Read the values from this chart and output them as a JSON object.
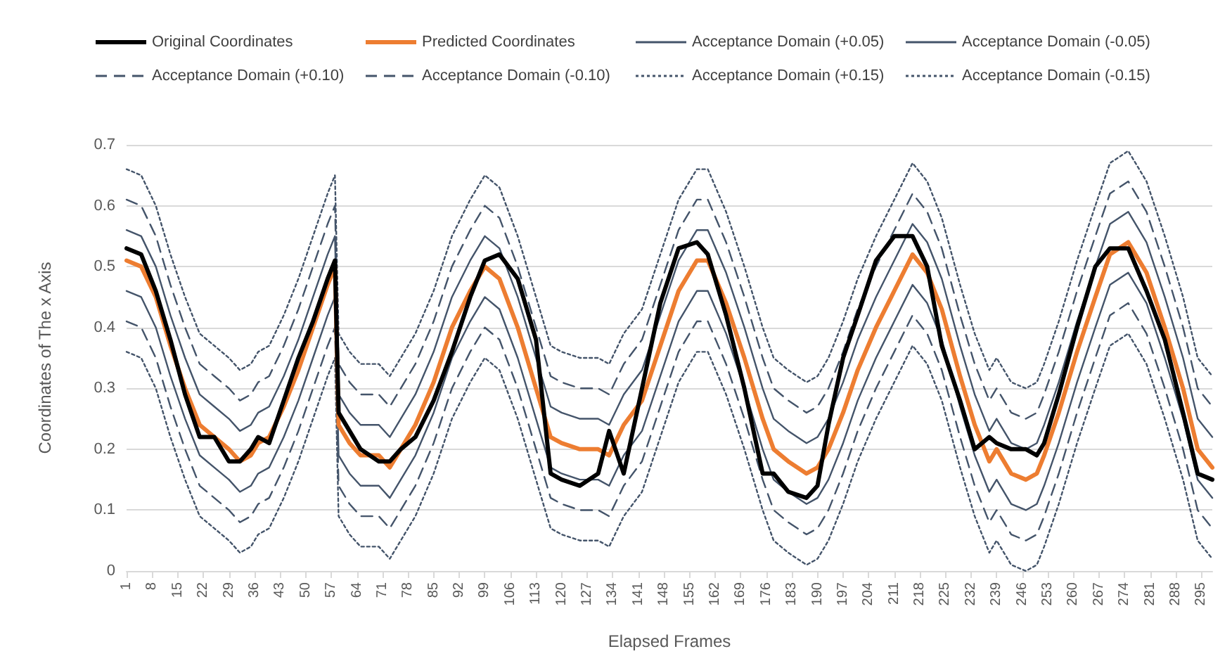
{
  "chart_data": {
    "type": "line",
    "xlabel": "Elapsed Frames",
    "ylabel": "Coordinates of The x Axis",
    "legend": "top",
    "grid": "y",
    "marker": "none",
    "x": [
      1,
      5,
      9,
      13,
      17,
      21,
      25,
      29,
      32,
      35,
      37,
      40,
      44,
      48,
      52,
      56,
      58,
      59,
      62,
      65,
      70,
      73,
      76,
      80,
      85,
      90,
      95,
      99,
      103,
      108,
      113,
      117,
      120,
      125,
      130,
      133,
      137,
      142,
      147,
      152,
      157,
      160,
      165,
      170,
      175,
      178,
      182,
      187,
      190,
      193,
      197,
      201,
      206,
      211,
      216,
      220,
      224,
      229,
      233,
      237,
      239,
      243,
      247,
      250,
      252,
      256,
      261,
      266,
      270,
      275,
      280,
      285,
      290,
      294,
      298
    ],
    "xlim": [
      1,
      298
    ],
    "xticks": [
      1,
      8,
      15,
      22,
      29,
      36,
      43,
      50,
      57,
      64,
      71,
      78,
      85,
      92,
      99,
      106,
      113,
      120,
      127,
      134,
      141,
      148,
      155,
      162,
      169,
      176,
      183,
      190,
      197,
      204,
      211,
      218,
      225,
      232,
      239,
      246,
      253,
      260,
      267,
      274,
      281,
      288,
      295
    ],
    "ylim": [
      0,
      0.7
    ],
    "yticks": [
      0,
      0.1,
      0.2,
      0.3,
      0.4,
      0.5,
      0.6,
      0.7
    ],
    "series": [
      {
        "name": "Original Coordinates",
        "color": "#000000",
        "line_style": "solid",
        "values": [
          0.53,
          0.52,
          0.46,
          0.38,
          0.29,
          0.22,
          0.22,
          0.18,
          0.18,
          0.2,
          0.22,
          0.21,
          0.28,
          0.35,
          0.41,
          0.48,
          0.51,
          0.26,
          0.23,
          0.2,
          0.18,
          0.18,
          0.2,
          0.22,
          0.28,
          0.36,
          0.45,
          0.51,
          0.52,
          0.48,
          0.38,
          0.16,
          0.15,
          0.14,
          0.16,
          0.23,
          0.16,
          0.3,
          0.44,
          0.53,
          0.54,
          0.52,
          0.42,
          0.3,
          0.16,
          0.16,
          0.13,
          0.12,
          0.14,
          0.24,
          0.35,
          0.42,
          0.51,
          0.55,
          0.55,
          0.5,
          0.37,
          0.28,
          0.2,
          0.22,
          0.21,
          0.2,
          0.2,
          0.19,
          0.21,
          0.29,
          0.4,
          0.5,
          0.53,
          0.53,
          0.46,
          0.38,
          0.26,
          0.16,
          0.15
        ]
      },
      {
        "name": "Predicted Coordinates",
        "color": "#ed7d31",
        "line_style": "solid",
        "values": [
          0.51,
          0.5,
          0.45,
          0.37,
          0.3,
          0.24,
          0.22,
          0.2,
          0.18,
          0.19,
          0.21,
          0.22,
          0.27,
          0.33,
          0.4,
          0.47,
          0.5,
          0.24,
          0.21,
          0.19,
          0.19,
          0.17,
          0.2,
          0.24,
          0.31,
          0.4,
          0.46,
          0.5,
          0.48,
          0.4,
          0.3,
          0.22,
          0.21,
          0.2,
          0.2,
          0.19,
          0.24,
          0.28,
          0.37,
          0.46,
          0.51,
          0.51,
          0.44,
          0.35,
          0.25,
          0.2,
          0.18,
          0.16,
          0.17,
          0.2,
          0.26,
          0.33,
          0.4,
          0.46,
          0.52,
          0.49,
          0.43,
          0.32,
          0.24,
          0.18,
          0.2,
          0.16,
          0.15,
          0.16,
          0.19,
          0.26,
          0.36,
          0.45,
          0.52,
          0.54,
          0.49,
          0.4,
          0.3,
          0.2,
          0.17
        ]
      },
      {
        "name": "Acceptance Domain (+0.05)",
        "color": "#44546a",
        "line_style": "solid",
        "values": [
          0.56,
          0.55,
          0.5,
          0.42,
          0.35,
          0.29,
          0.27,
          0.25,
          0.23,
          0.24,
          0.26,
          0.27,
          0.32,
          0.38,
          0.45,
          0.52,
          0.55,
          0.29,
          0.26,
          0.24,
          0.24,
          0.22,
          0.25,
          0.29,
          0.36,
          0.45,
          0.51,
          0.55,
          0.53,
          0.45,
          0.35,
          0.27,
          0.26,
          0.25,
          0.25,
          0.24,
          0.29,
          0.33,
          0.42,
          0.51,
          0.56,
          0.56,
          0.49,
          0.4,
          0.3,
          0.25,
          0.23,
          0.21,
          0.22,
          0.25,
          0.31,
          0.38,
          0.45,
          0.51,
          0.57,
          0.54,
          0.48,
          0.37,
          0.29,
          0.23,
          0.25,
          0.21,
          0.2,
          0.21,
          0.24,
          0.31,
          0.41,
          0.5,
          0.57,
          0.59,
          0.54,
          0.45,
          0.35,
          0.25,
          0.22
        ]
      },
      {
        "name": "Acceptance Domain (-0.05)",
        "color": "#44546a",
        "line_style": "solid",
        "values": [
          0.46,
          0.45,
          0.4,
          0.32,
          0.25,
          0.19,
          0.17,
          0.15,
          0.13,
          0.14,
          0.16,
          0.17,
          0.22,
          0.28,
          0.35,
          0.42,
          0.45,
          0.19,
          0.16,
          0.14,
          0.14,
          0.12,
          0.15,
          0.19,
          0.26,
          0.35,
          0.41,
          0.45,
          0.43,
          0.35,
          0.25,
          0.17,
          0.16,
          0.15,
          0.15,
          0.14,
          0.19,
          0.23,
          0.32,
          0.41,
          0.46,
          0.46,
          0.39,
          0.3,
          0.2,
          0.15,
          0.13,
          0.11,
          0.12,
          0.15,
          0.21,
          0.28,
          0.35,
          0.41,
          0.47,
          0.44,
          0.38,
          0.27,
          0.19,
          0.13,
          0.15,
          0.11,
          0.1,
          0.11,
          0.14,
          0.21,
          0.31,
          0.4,
          0.47,
          0.49,
          0.44,
          0.35,
          0.25,
          0.15,
          0.12
        ]
      },
      {
        "name": "Acceptance Domain (+0.10)",
        "color": "#44546a",
        "line_style": "dashed",
        "values": [
          0.61,
          0.6,
          0.55,
          0.47,
          0.4,
          0.34,
          0.32,
          0.3,
          0.28,
          0.29,
          0.31,
          0.32,
          0.37,
          0.43,
          0.5,
          0.57,
          0.6,
          0.34,
          0.31,
          0.29,
          0.29,
          0.27,
          0.3,
          0.34,
          0.41,
          0.5,
          0.56,
          0.6,
          0.58,
          0.5,
          0.4,
          0.32,
          0.31,
          0.3,
          0.3,
          0.29,
          0.34,
          0.38,
          0.47,
          0.56,
          0.61,
          0.61,
          0.54,
          0.45,
          0.35,
          0.3,
          0.28,
          0.26,
          0.27,
          0.3,
          0.36,
          0.43,
          0.5,
          0.56,
          0.62,
          0.59,
          0.53,
          0.42,
          0.34,
          0.28,
          0.3,
          0.26,
          0.25,
          0.26,
          0.29,
          0.36,
          0.46,
          0.55,
          0.62,
          0.64,
          0.59,
          0.5,
          0.4,
          0.3,
          0.27
        ]
      },
      {
        "name": "Acceptance Domain (-0.10)",
        "color": "#44546a",
        "line_style": "dashed",
        "values": [
          0.41,
          0.4,
          0.35,
          0.27,
          0.2,
          0.14,
          0.12,
          0.1,
          0.08,
          0.09,
          0.11,
          0.12,
          0.17,
          0.23,
          0.3,
          0.37,
          0.4,
          0.14,
          0.11,
          0.09,
          0.09,
          0.07,
          0.1,
          0.14,
          0.21,
          0.3,
          0.36,
          0.4,
          0.38,
          0.3,
          0.2,
          0.12,
          0.11,
          0.1,
          0.1,
          0.09,
          0.14,
          0.18,
          0.27,
          0.36,
          0.41,
          0.41,
          0.34,
          0.25,
          0.15,
          0.1,
          0.08,
          0.06,
          0.07,
          0.1,
          0.16,
          0.23,
          0.3,
          0.36,
          0.42,
          0.39,
          0.33,
          0.22,
          0.14,
          0.08,
          0.1,
          0.06,
          0.05,
          0.06,
          0.09,
          0.16,
          0.26,
          0.35,
          0.42,
          0.44,
          0.39,
          0.3,
          0.2,
          0.1,
          0.07
        ]
      },
      {
        "name": "Acceptance Domain (+0.15)",
        "color": "#44546a",
        "line_style": "dotted",
        "values": [
          0.66,
          0.65,
          0.6,
          0.52,
          0.45,
          0.39,
          0.37,
          0.35,
          0.33,
          0.34,
          0.36,
          0.37,
          0.42,
          0.48,
          0.55,
          0.62,
          0.65,
          0.39,
          0.36,
          0.34,
          0.34,
          0.32,
          0.35,
          0.39,
          0.46,
          0.55,
          0.61,
          0.65,
          0.63,
          0.55,
          0.45,
          0.37,
          0.36,
          0.35,
          0.35,
          0.34,
          0.39,
          0.43,
          0.52,
          0.61,
          0.66,
          0.66,
          0.59,
          0.5,
          0.4,
          0.35,
          0.33,
          0.31,
          0.32,
          0.35,
          0.41,
          0.48,
          0.55,
          0.61,
          0.67,
          0.64,
          0.58,
          0.47,
          0.39,
          0.33,
          0.35,
          0.31,
          0.3,
          0.31,
          0.34,
          0.41,
          0.51,
          0.6,
          0.67,
          0.69,
          0.64,
          0.55,
          0.45,
          0.35,
          0.32
        ]
      },
      {
        "name": "Acceptance Domain (-0.15)",
        "color": "#44546a",
        "line_style": "dotted",
        "values": [
          0.36,
          0.35,
          0.3,
          0.22,
          0.15,
          0.09,
          0.07,
          0.05,
          0.03,
          0.04,
          0.06,
          0.07,
          0.12,
          0.18,
          0.25,
          0.32,
          0.35,
          0.09,
          0.06,
          0.04,
          0.04,
          0.02,
          0.05,
          0.09,
          0.16,
          0.25,
          0.31,
          0.35,
          0.33,
          0.25,
          0.15,
          0.07,
          0.06,
          0.05,
          0.05,
          0.04,
          0.09,
          0.13,
          0.22,
          0.31,
          0.36,
          0.36,
          0.29,
          0.2,
          0.1,
          0.05,
          0.03,
          0.01,
          0.02,
          0.05,
          0.11,
          0.18,
          0.25,
          0.31,
          0.37,
          0.34,
          0.28,
          0.17,
          0.09,
          0.03,
          0.05,
          0.01,
          0,
          0.01,
          0.04,
          0.11,
          0.21,
          0.3,
          0.37,
          0.39,
          0.34,
          0.25,
          0.15,
          0.05,
          0.02
        ]
      }
    ]
  }
}
